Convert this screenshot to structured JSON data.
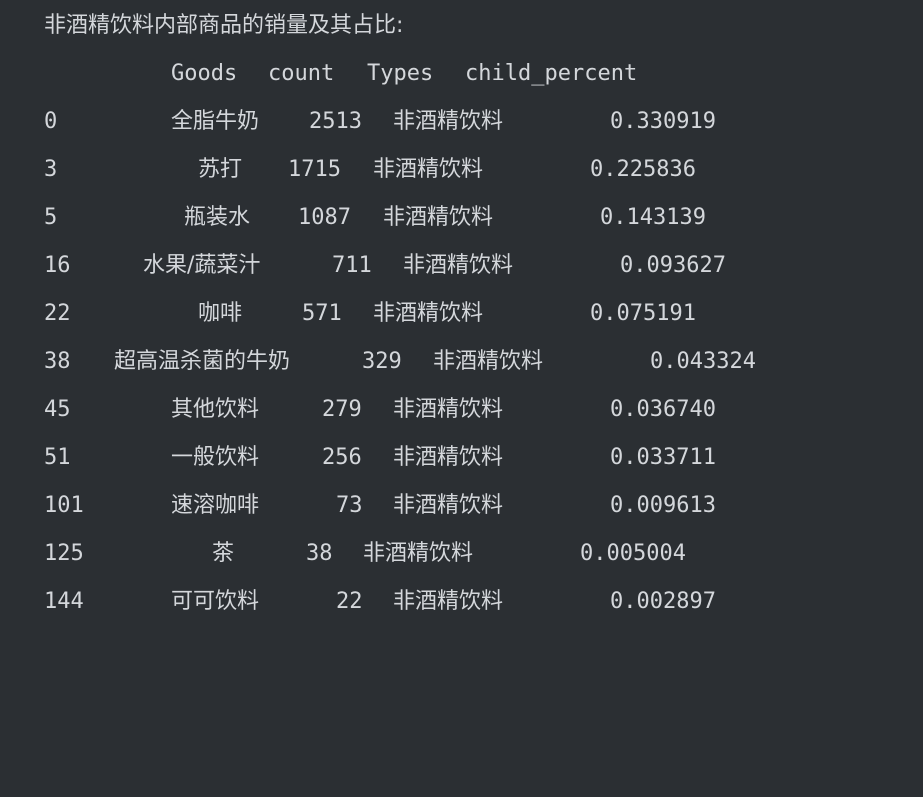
{
  "output": {
    "title": "非酒精饮料内部商品的销量及其占比:",
    "headers": [
      "Goods",
      "count",
      "Types",
      "child_percent"
    ],
    "rows": [
      {
        "index": "0",
        "goods": "全脂牛奶",
        "count": "2513",
        "type": "非酒精饮料",
        "percent": "0.330919"
      },
      {
        "index": "3",
        "goods": "苏打",
        "count": "1715",
        "type": "非酒精饮料",
        "percent": "0.225836"
      },
      {
        "index": "5",
        "goods": "瓶装水",
        "count": "1087",
        "type": "非酒精饮料",
        "percent": "0.143139"
      },
      {
        "index": "16",
        "goods": "水果/蔬菜汁",
        "count": "711",
        "type": "非酒精饮料",
        "percent": "0.093627"
      },
      {
        "index": "22",
        "goods": "咖啡",
        "count": "571",
        "type": "非酒精饮料",
        "percent": "0.075191"
      },
      {
        "index": "38",
        "goods": "超高温杀菌的牛奶",
        "count": "329",
        "type": "非酒精饮料",
        "percent": "0.043324"
      },
      {
        "index": "45",
        "goods": "其他饮料",
        "count": "279",
        "type": "非酒精饮料",
        "percent": "0.036740"
      },
      {
        "index": "51",
        "goods": "一般饮料",
        "count": "256",
        "type": "非酒精饮料",
        "percent": "0.033711"
      },
      {
        "index": "101",
        "goods": "速溶咖啡",
        "count": "73",
        "type": "非酒精饮料",
        "percent": "0.009613"
      },
      {
        "index": "125",
        "goods": "茶",
        "count": "38",
        "type": "非酒精饮料",
        "percent": "0.005004"
      },
      {
        "index": "144",
        "goods": "可可饮料",
        "count": "22",
        "type": "非酒精饮料",
        "percent": "0.002897"
      }
    ]
  },
  "colors": {
    "background": "#2b2f33",
    "text": "#d4d7db"
  }
}
